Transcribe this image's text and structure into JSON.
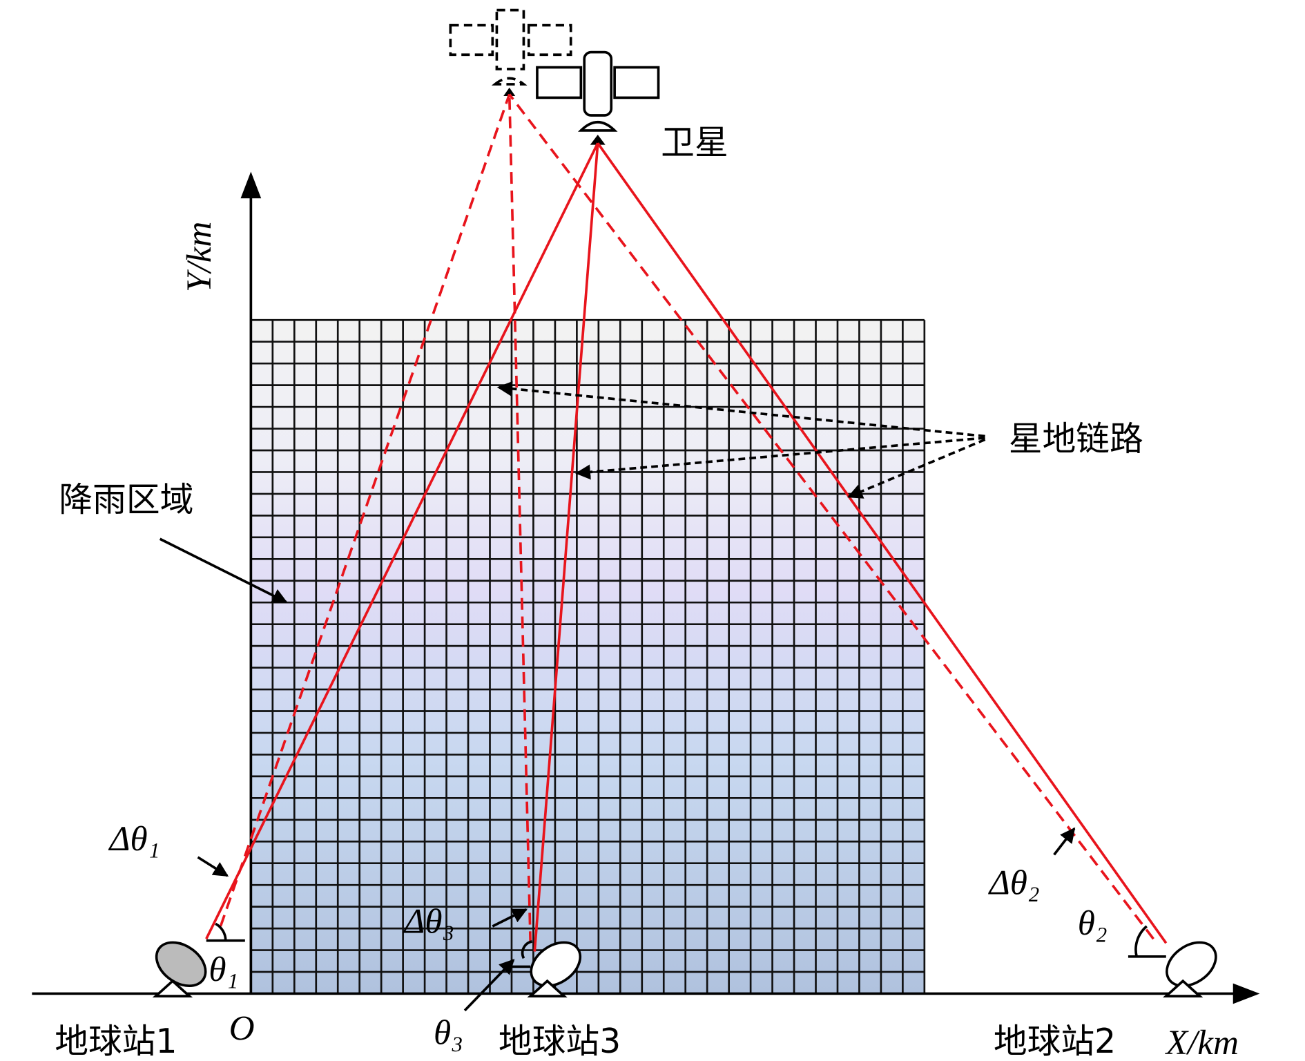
{
  "satellite": "卫星",
  "y_axis": "Y/km",
  "x_axis": "X/km",
  "origin": "O",
  "link_label": "星地链路",
  "rain_label": "降雨区域",
  "angles": {
    "d1": "Δθ₁",
    "d2": "Δθ₂",
    "d3": "Δθ₃",
    "t1": "θ₁",
    "t2": "θ₂",
    "t3": "θ₃"
  },
  "stations": [
    "地球站1",
    "地球站3",
    "地球站2"
  ]
}
